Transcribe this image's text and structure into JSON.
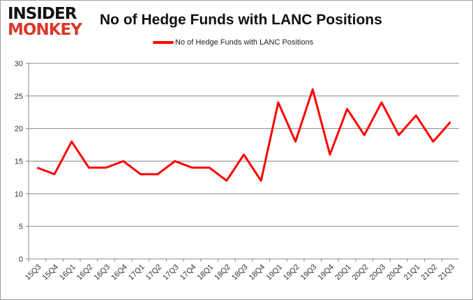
{
  "logo": {
    "line1": "INSIDER",
    "line2": "MONKEY"
  },
  "chart_data": {
    "type": "line",
    "title": "No of Hedge Funds with LANC Positions",
    "xlabel": "",
    "ylabel": "",
    "ylim": [
      0,
      30
    ],
    "yticks": [
      0,
      5,
      10,
      15,
      20,
      25,
      30
    ],
    "grid": true,
    "legend_position": "top-center",
    "categories": [
      "15Q3",
      "15Q4",
      "16Q1",
      "16Q2",
      "16Q3",
      "16Q4",
      "17Q1",
      "17Q2",
      "17Q3",
      "17Q4",
      "18Q1",
      "18Q2",
      "18Q3",
      "18Q4",
      "19Q1",
      "19Q2",
      "19Q3",
      "19Q4",
      "20Q1",
      "20Q2",
      "20Q3",
      "20Q4",
      "21Q1",
      "21Q2",
      "21Q3"
    ],
    "series": [
      {
        "name": "No of Hedge Funds with LANC Positions",
        "color": "#ff0000",
        "values": [
          14,
          13,
          18,
          14,
          14,
          15,
          13,
          13,
          15,
          14,
          14,
          12,
          16,
          12,
          24,
          18,
          26,
          16,
          23,
          19,
          24,
          19,
          22,
          18,
          21
        ]
      }
    ]
  }
}
